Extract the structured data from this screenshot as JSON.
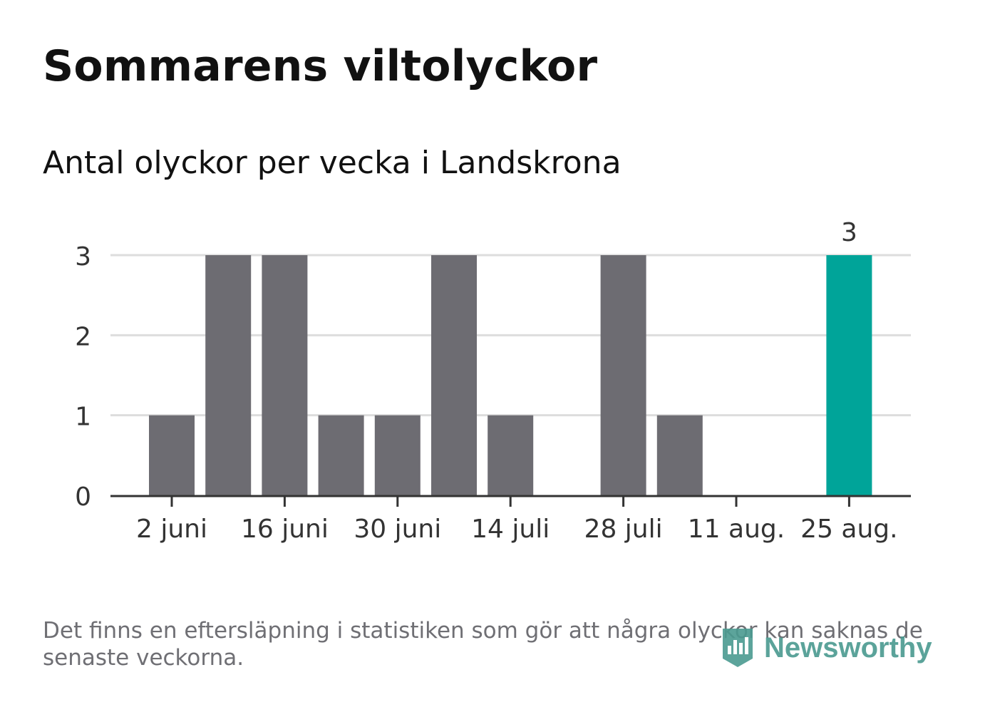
{
  "header": {
    "title": "Sommarens viltolyckor",
    "subtitle": "Antal olyckor per vecka i Landskrona"
  },
  "footer": {
    "note": "Det finns en eftersläpning i statistiken som gör att några olyckor kan saknas de senaste veckorna.",
    "logo_text": "Newsworthy"
  },
  "colors": {
    "bar": "#6d6c72",
    "highlight": "#00a499",
    "grid": "#dddddd",
    "axis": "#333333",
    "logo": "#4a9a90"
  },
  "chart_data": {
    "type": "bar",
    "title": "Sommarens viltolyckor",
    "subtitle": "Antal olyckor per vecka i Landskrona",
    "x": [
      "2019-06-02",
      "2019-06-09",
      "2019-06-16",
      "2019-06-23",
      "2019-06-30",
      "2019-07-07",
      "2019-07-14",
      "2019-07-21",
      "2019-07-28",
      "2019-08-04",
      "2019-08-11",
      "2019-08-18",
      "2019-08-25"
    ],
    "values": [
      1,
      3,
      3,
      1,
      1,
      3,
      1,
      0,
      3,
      1,
      0,
      0,
      3
    ],
    "highlight_index": 12,
    "highlight_label": "3",
    "ylim": [
      0,
      3
    ],
    "yticks": [
      "0",
      "1",
      "2",
      "3"
    ],
    "xticks": [
      {
        "index": 0,
        "label": "2 juni"
      },
      {
        "index": 2,
        "label": "16 juni"
      },
      {
        "index": 4,
        "label": "30 juni"
      },
      {
        "index": 6,
        "label": "14 juli"
      },
      {
        "index": 8,
        "label": "28 juli"
      },
      {
        "index": 10,
        "label": "11 aug."
      },
      {
        "index": 12,
        "label": "25 aug."
      }
    ],
    "grid": true,
    "xlabel": "",
    "ylabel": ""
  }
}
